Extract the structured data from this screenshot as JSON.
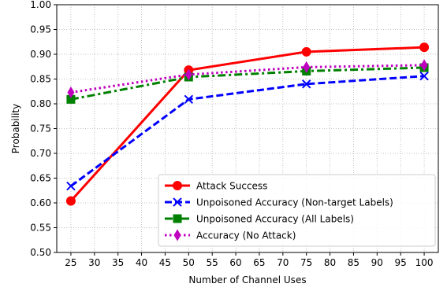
{
  "chart_data": {
    "type": "line",
    "xlabel": "Number of Channel Uses",
    "ylabel": "Probability",
    "x": [
      25,
      50,
      75,
      100
    ],
    "xlim": [
      22,
      103
    ],
    "ylim": [
      0.5,
      1.0
    ],
    "xticks": [
      "25",
      "30",
      "35",
      "40",
      "45",
      "50",
      "55",
      "60",
      "65",
      "70",
      "75",
      "80",
      "85",
      "90",
      "95",
      "100"
    ],
    "yticks": [
      "0.50",
      "0.55",
      "0.60",
      "0.65",
      "0.70",
      "0.75",
      "0.80",
      "0.85",
      "0.90",
      "0.95",
      "1.00"
    ],
    "grid": true,
    "legend_position": "lower-right",
    "series": [
      {
        "name": "Attack Success",
        "values": [
          0.604,
          0.868,
          0.905,
          0.914
        ],
        "color": "#ff0000",
        "linestyle": "solid",
        "marker": "circle"
      },
      {
        "name": "Unpoisoned Accuracy (Non-target Labels)",
        "values": [
          0.634,
          0.809,
          0.84,
          0.856
        ],
        "color": "#0000ff",
        "linestyle": "dashed",
        "marker": "x"
      },
      {
        "name": "Unpoisoned Accuracy (All Labels)",
        "values": [
          0.809,
          0.854,
          0.866,
          0.873
        ],
        "color": "#008000",
        "linestyle": "dashdot",
        "marker": "square"
      },
      {
        "name": "Accuracy (No Attack)",
        "values": [
          0.823,
          0.859,
          0.874,
          0.878
        ],
        "color": "#bf00bf",
        "linestyle": "dotted",
        "marker": "diamond"
      }
    ]
  }
}
